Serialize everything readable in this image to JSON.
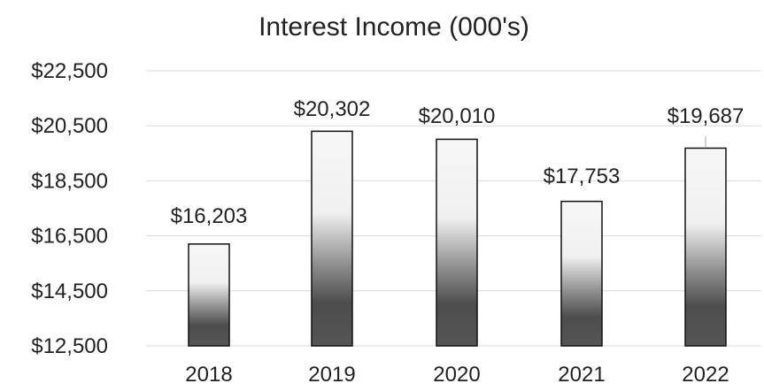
{
  "chart_data": {
    "type": "bar",
    "title": "Interest Income (000's)",
    "categories": [
      "2018",
      "2019",
      "2020",
      "2021",
      "2022"
    ],
    "values": [
      16203,
      20302,
      20010,
      17753,
      19687
    ],
    "data_labels": [
      "$16,203",
      "$20,302",
      "$20,010",
      "$17,753",
      "$19,687"
    ],
    "y_ticks": [
      12500,
      14500,
      16500,
      18500,
      20500,
      22500
    ],
    "y_tick_labels": [
      "$12,500",
      "$14,500",
      "$16,500",
      "$18,500",
      "$20,500",
      "$22,500"
    ],
    "ylim": [
      12500,
      22500
    ],
    "grid": true,
    "legend": "none",
    "bar_fill": "gradient",
    "colors": {
      "bar_light": "#f2f2f2",
      "bar_dark": "#4a4a4a",
      "grid": "#d9d9d9",
      "text": "#222222"
    }
  }
}
